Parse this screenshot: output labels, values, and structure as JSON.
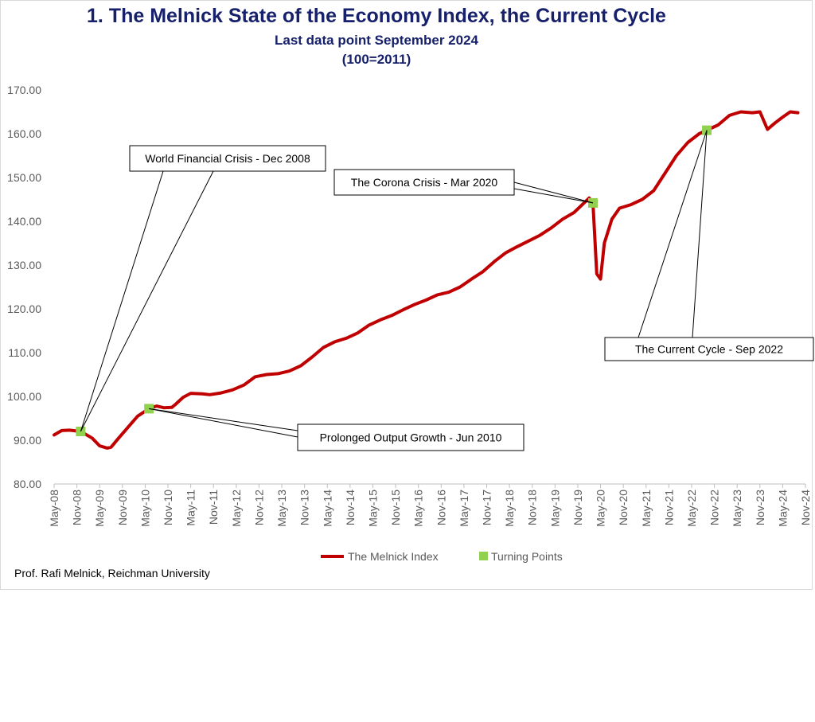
{
  "chart_data": {
    "type": "line",
    "title": "1.  The Melnick State of the Economy Index, the Current Cycle",
    "subtitle": "Last data point September 2024",
    "subtitle2": "(100=2011)",
    "xlabel": "",
    "ylabel": "",
    "ylim": [
      80,
      170
    ],
    "yticks": [
      "80.00",
      "90.00",
      "100.00",
      "110.00",
      "120.00",
      "130.00",
      "140.00",
      "150.00",
      "160.00",
      "170.00"
    ],
    "xticks": [
      "May-08",
      "Nov-08",
      "May-09",
      "Nov-09",
      "May-10",
      "Nov-10",
      "May-11",
      "Nov-11",
      "May-12",
      "Nov-12",
      "May-13",
      "Nov-13",
      "May-14",
      "Nov-14",
      "May-15",
      "Nov-15",
      "May-16",
      "Nov-16",
      "May-17",
      "Nov-17",
      "May-18",
      "Nov-18",
      "May-19",
      "Nov-19",
      "May-20",
      "Nov-20",
      "May-21",
      "Nov-21",
      "May-22",
      "Nov-22",
      "May-23",
      "Nov-23",
      "May-24",
      "Nov-24"
    ],
    "grid": false,
    "legend_position": "bottom",
    "series": [
      {
        "name": "The Melnick Index",
        "color": "#c00000",
        "points": [
          [
            "2008-05",
            91.2
          ],
          [
            "2008-07",
            92.2
          ],
          [
            "2008-09",
            92.3
          ],
          [
            "2008-12",
            92.0
          ],
          [
            "2009-03",
            90.5
          ],
          [
            "2009-05",
            88.7
          ],
          [
            "2009-07",
            88.2
          ],
          [
            "2009-08",
            88.4
          ],
          [
            "2009-10",
            90.5
          ],
          [
            "2009-12",
            92.5
          ],
          [
            "2010-03",
            95.5
          ],
          [
            "2010-06",
            97.2
          ],
          [
            "2010-08",
            97.8
          ],
          [
            "2010-10",
            97.4
          ],
          [
            "2010-12",
            97.5
          ],
          [
            "2011-01",
            98.2
          ],
          [
            "2011-03",
            99.8
          ],
          [
            "2011-05",
            100.7
          ],
          [
            "2011-08",
            100.6
          ],
          [
            "2011-10",
            100.4
          ],
          [
            "2012-01",
            100.8
          ],
          [
            "2012-04",
            101.5
          ],
          [
            "2012-07",
            102.6
          ],
          [
            "2012-10",
            104.5
          ],
          [
            "2013-01",
            105.0
          ],
          [
            "2013-04",
            105.2
          ],
          [
            "2013-07",
            105.8
          ],
          [
            "2013-10",
            107.0
          ],
          [
            "2014-01",
            109.0
          ],
          [
            "2014-04",
            111.2
          ],
          [
            "2014-07",
            112.5
          ],
          [
            "2014-10",
            113.3
          ],
          [
            "2015-01",
            114.5
          ],
          [
            "2015-04",
            116.3
          ],
          [
            "2015-07",
            117.5
          ],
          [
            "2015-10",
            118.5
          ],
          [
            "2016-01",
            119.8
          ],
          [
            "2016-04",
            121.0
          ],
          [
            "2016-07",
            122.0
          ],
          [
            "2016-10",
            123.2
          ],
          [
            "2017-01",
            123.8
          ],
          [
            "2017-04",
            125.0
          ],
          [
            "2017-07",
            126.8
          ],
          [
            "2017-10",
            128.5
          ],
          [
            "2018-01",
            130.8
          ],
          [
            "2018-04",
            132.8
          ],
          [
            "2018-07",
            134.2
          ],
          [
            "2018-10",
            135.5
          ],
          [
            "2019-01",
            136.8
          ],
          [
            "2019-04",
            138.5
          ],
          [
            "2019-07",
            140.5
          ],
          [
            "2019-10",
            142.0
          ],
          [
            "2020-01",
            144.5
          ],
          [
            "2020-02",
            145.3
          ],
          [
            "2020-03",
            144.2
          ],
          [
            "2020-04",
            128.0
          ],
          [
            "2020-05",
            126.8
          ],
          [
            "2020-06",
            135.0
          ],
          [
            "2020-08",
            140.5
          ],
          [
            "2020-10",
            143.0
          ],
          [
            "2021-01",
            143.8
          ],
          [
            "2021-04",
            145.0
          ],
          [
            "2021-07",
            147.0
          ],
          [
            "2021-10",
            151.0
          ],
          [
            "2022-01",
            155.0
          ],
          [
            "2022-04",
            158.0
          ],
          [
            "2022-07",
            160.0
          ],
          [
            "2022-09",
            160.8
          ],
          [
            "2022-12",
            162.0
          ],
          [
            "2023-03",
            164.2
          ],
          [
            "2023-06",
            165.0
          ],
          [
            "2023-09",
            164.8
          ],
          [
            "2023-11",
            165.0
          ],
          [
            "2024-01",
            161.0
          ],
          [
            "2024-03",
            162.5
          ],
          [
            "2024-05",
            163.8
          ],
          [
            "2024-07",
            165.0
          ],
          [
            "2024-09",
            164.8
          ]
        ]
      },
      {
        "name": "Turning Points",
        "color": "#92d050",
        "points": [
          [
            "2008-12",
            92.0
          ],
          [
            "2010-06",
            97.2
          ],
          [
            "2020-03",
            144.2
          ],
          [
            "2022-09",
            160.8
          ]
        ]
      }
    ],
    "annotations": [
      {
        "text": "World Financial Crisis - Dec 2008",
        "point": [
          "2008-12",
          92.0
        ]
      },
      {
        "text": "The Corona Crisis - Mar 2020",
        "point": [
          "2020-03",
          144.2
        ]
      },
      {
        "text": "Prolonged Output Growth - Jun 2010",
        "point": [
          "2010-06",
          97.2
        ]
      },
      {
        "text": "The Current Cycle - Sep 2022",
        "point": [
          "2022-09",
          160.8
        ]
      }
    ]
  },
  "credit": "Prof. Rafi Melnick, Reichman University"
}
